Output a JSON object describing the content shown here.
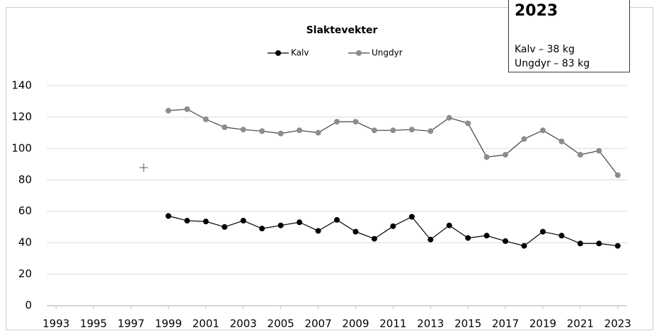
{
  "chart_data": {
    "type": "line",
    "title": "Slaktevekter",
    "x": [
      1999,
      2000,
      2001,
      2002,
      2003,
      2004,
      2005,
      2006,
      2007,
      2008,
      2009,
      2010,
      2011,
      2012,
      2013,
      2014,
      2015,
      2016,
      2017,
      2018,
      2019,
      2020,
      2021,
      2022,
      2023
    ],
    "series": [
      {
        "name": "Kalv",
        "color": "#000000",
        "values": [
          57,
          54,
          53.5,
          50,
          54,
          49,
          51,
          53,
          47.5,
          54.5,
          47,
          42.5,
          50.5,
          56.5,
          42,
          51,
          43,
          44.5,
          41,
          38,
          47,
          44.5,
          39.5,
          39.5,
          38
        ]
      },
      {
        "name": "Ungdyr",
        "color": "#8c8c8c",
        "values": [
          124,
          125,
          118.5,
          113.5,
          112,
          111,
          109.5,
          111.5,
          110,
          117,
          117,
          111.5,
          111.5,
          112,
          111,
          119.5,
          116,
          94.5,
          96,
          106,
          111.5,
          104.5,
          96,
          98.5,
          83
        ]
      }
    ],
    "xlim": [
      1992.5,
      2023.5
    ],
    "xticks": [
      1993,
      1995,
      1997,
      1999,
      2001,
      2003,
      2005,
      2007,
      2009,
      2011,
      2013,
      2015,
      2017,
      2019,
      2021,
      2023
    ],
    "ylim": [
      0,
      140
    ],
    "yticks": [
      0,
      20,
      40,
      60,
      80,
      100,
      120,
      140
    ],
    "grid": true,
    "legend": "top",
    "annotation": {
      "title": "2023",
      "lines": [
        "Kalv – 38 kg",
        "Ungdyr – 83 kg"
      ]
    }
  }
}
